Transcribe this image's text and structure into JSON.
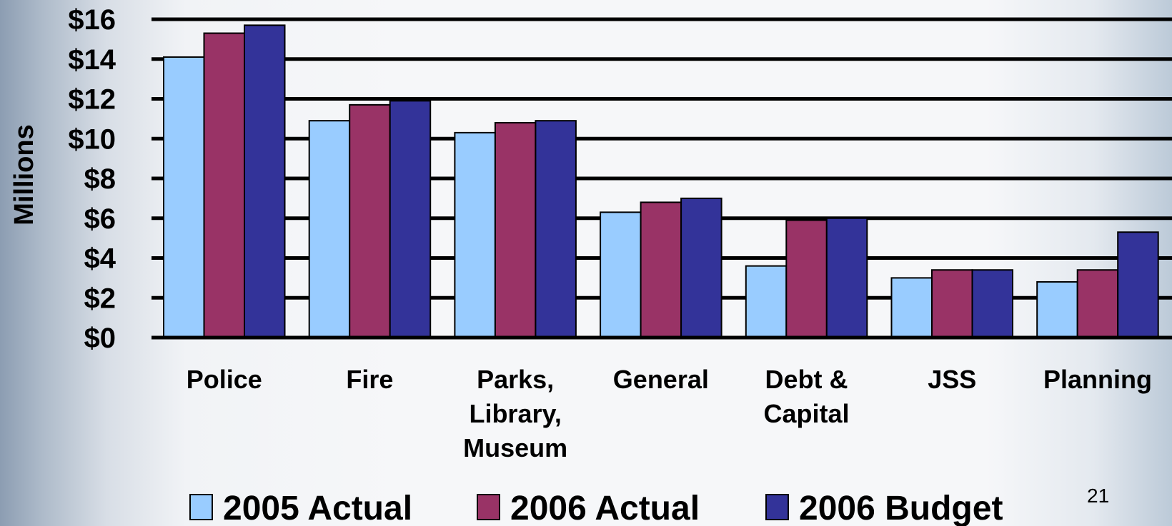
{
  "chart_data": {
    "type": "bar",
    "title": "",
    "xlabel": "",
    "ylabel": "Millions",
    "ylim": [
      0,
      16
    ],
    "yticks": [
      0,
      2,
      4,
      6,
      8,
      10,
      12,
      14,
      16
    ],
    "ytick_labels": [
      "$0",
      "$2",
      "$4",
      "$6",
      "$8",
      "$10",
      "$12",
      "$14",
      "$16"
    ],
    "grid": true,
    "legend_position": "bottom",
    "categories": [
      [
        "Police"
      ],
      [
        "Fire"
      ],
      [
        "Parks,",
        "Library,",
        "Museum"
      ],
      [
        "General"
      ],
      [
        "Debt &",
        "Capital"
      ],
      [
        "JSS"
      ],
      [
        "Planning"
      ]
    ],
    "series": [
      {
        "name": "2005 Actual",
        "color": "#99ccff",
        "values": [
          14.1,
          10.9,
          10.3,
          6.3,
          3.6,
          3.0,
          2.8
        ]
      },
      {
        "name": "2006 Actual",
        "color": "#993366",
        "values": [
          15.3,
          11.7,
          10.8,
          6.8,
          5.9,
          3.4,
          3.4
        ]
      },
      {
        "name": "2006 Budget",
        "color": "#333399",
        "values": [
          15.7,
          11.9,
          10.9,
          7.0,
          6.0,
          3.4,
          5.3
        ]
      }
    ]
  },
  "slide": {
    "page_number": "21"
  }
}
